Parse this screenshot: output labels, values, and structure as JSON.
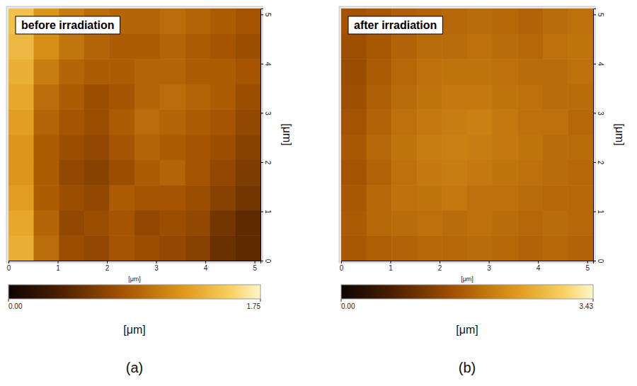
{
  "chart_data": [
    {
      "type": "heatmap",
      "title": "before irradiation",
      "caption": "(a)",
      "x_label": "[μm]",
      "y_label": "[μm]",
      "xlim": [
        0,
        5.12
      ],
      "ylim": [
        0,
        5.12
      ],
      "xticks": [
        0,
        1,
        2,
        3,
        4,
        5
      ],
      "yticks": [
        0,
        1,
        2,
        3,
        4,
        5
      ],
      "x": [
        0.256,
        0.768,
        1.28,
        1.792,
        2.304,
        2.816,
        3.328,
        3.84,
        4.352,
        4.864
      ],
      "y": [
        0.256,
        0.768,
        1.28,
        1.792,
        2.304,
        2.816,
        3.328,
        3.84,
        4.352,
        4.864
      ],
      "z": [
        [
          1.35,
          0.95,
          0.75,
          0.7,
          0.8,
          0.75,
          0.7,
          0.65,
          0.5,
          0.45
        ],
        [
          1.3,
          0.9,
          0.7,
          0.75,
          0.8,
          0.7,
          0.75,
          0.7,
          0.55,
          0.45
        ],
        [
          1.25,
          0.85,
          0.75,
          0.7,
          0.85,
          0.8,
          0.8,
          0.75,
          0.65,
          0.55
        ],
        [
          1.2,
          0.85,
          0.7,
          0.65,
          0.75,
          0.85,
          0.9,
          0.8,
          0.7,
          0.6
        ],
        [
          1.2,
          0.85,
          0.75,
          0.7,
          0.8,
          0.9,
          0.85,
          0.8,
          0.75,
          0.65
        ],
        [
          1.25,
          0.9,
          0.8,
          0.75,
          0.85,
          0.95,
          0.9,
          0.85,
          0.8,
          0.7
        ],
        [
          1.3,
          0.95,
          0.85,
          0.75,
          0.8,
          0.9,
          0.95,
          0.9,
          0.85,
          0.75
        ],
        [
          1.35,
          1.05,
          0.9,
          0.85,
          0.85,
          0.9,
          0.9,
          0.85,
          0.85,
          0.8
        ],
        [
          1.4,
          1.15,
          1.0,
          0.9,
          0.85,
          0.85,
          0.9,
          0.85,
          0.8,
          0.75
        ],
        [
          1.45,
          1.2,
          1.05,
          0.95,
          0.9,
          0.9,
          0.95,
          0.9,
          0.85,
          0.8
        ]
      ],
      "colorbar": {
        "label": "[μm]",
        "range": [
          0,
          1.75
        ],
        "ticks": [
          {
            "value": 0,
            "label": "0.00"
          },
          1.75
        ]
      }
    },
    {
      "type": "heatmap",
      "title": "after irradiation",
      "caption": "(b)",
      "x_label": "[μm]",
      "y_label": "[μm]",
      "xlim": [
        0,
        5.12
      ],
      "ylim": [
        0,
        5.12
      ],
      "xticks": [
        0,
        1,
        2,
        3,
        4,
        5
      ],
      "yticks": [
        0,
        1,
        2,
        3,
        4,
        5
      ],
      "x": [
        0.256,
        0.768,
        1.28,
        1.792,
        2.304,
        2.816,
        3.328,
        3.84,
        4.352,
        4.864
      ],
      "y": [
        0.256,
        0.768,
        1.28,
        1.792,
        2.304,
        2.816,
        3.328,
        3.84,
        4.352,
        4.864
      ],
      "z": [
        [
          1.6,
          1.7,
          1.75,
          1.8,
          1.8,
          1.85,
          1.8,
          1.75,
          1.8,
          1.75
        ],
        [
          1.65,
          1.8,
          1.85,
          1.9,
          1.85,
          1.9,
          1.85,
          1.8,
          1.85,
          1.8
        ],
        [
          1.6,
          1.8,
          1.9,
          1.95,
          2.0,
          1.9,
          1.9,
          1.85,
          1.8,
          1.8
        ],
        [
          1.55,
          1.75,
          1.9,
          2.0,
          2.05,
          2.0,
          1.95,
          1.9,
          1.85,
          1.8
        ],
        [
          1.6,
          1.8,
          1.95,
          2.05,
          2.1,
          2.05,
          2.0,
          1.95,
          1.85,
          1.85
        ],
        [
          1.55,
          1.75,
          1.9,
          2.0,
          2.05,
          2.1,
          2.0,
          1.9,
          1.9,
          1.8
        ],
        [
          1.5,
          1.7,
          1.85,
          1.95,
          2.0,
          2.0,
          1.95,
          1.9,
          1.85,
          1.85
        ],
        [
          1.45,
          1.65,
          1.8,
          1.9,
          1.95,
          1.95,
          1.9,
          1.85,
          1.85,
          1.9
        ],
        [
          1.5,
          1.6,
          1.75,
          1.85,
          1.85,
          1.9,
          1.85,
          1.8,
          1.9,
          1.95
        ],
        [
          1.55,
          1.6,
          1.7,
          1.75,
          1.8,
          1.85,
          1.8,
          1.75,
          1.85,
          1.9
        ]
      ],
      "colorbar": {
        "label": "[μm]",
        "range": [
          0,
          3.43
        ],
        "ticks": [
          {
            "value": 0,
            "label": "0.00"
          },
          3.43
        ]
      }
    }
  ]
}
